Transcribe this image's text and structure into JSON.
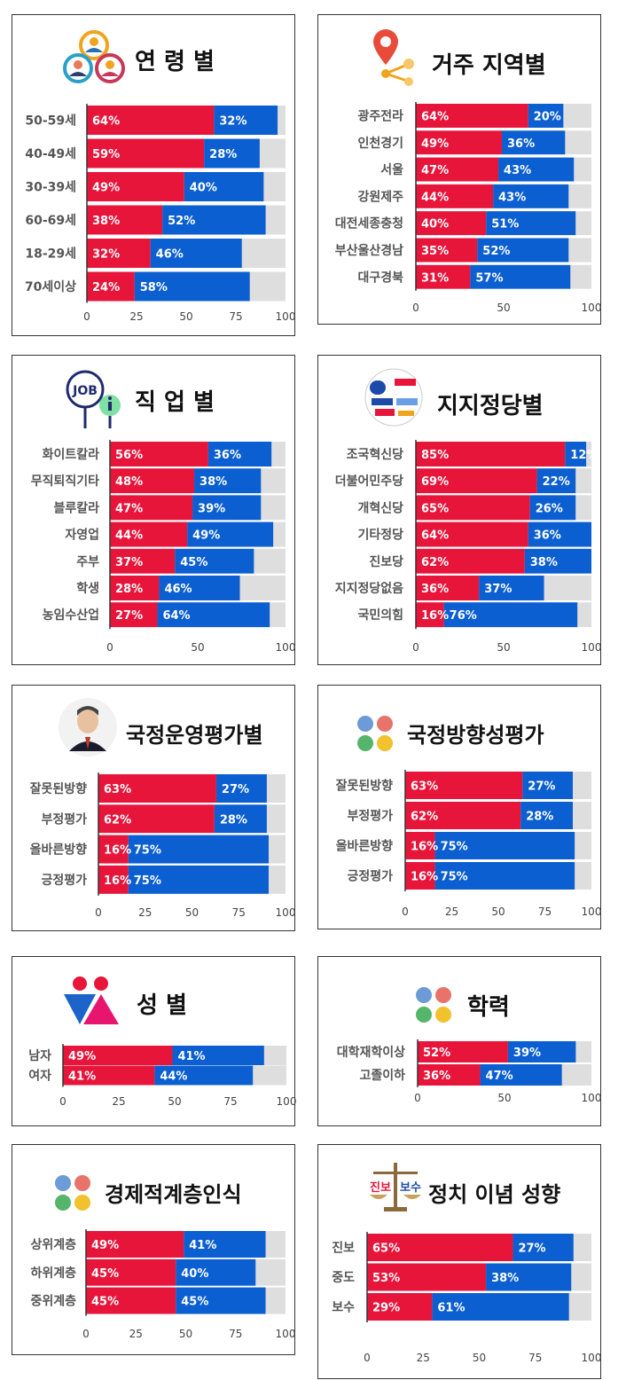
{
  "colors": {
    "red": "#e8153b",
    "blue": "#0b5fd1",
    "gray": "#dedede",
    "axis": "#333333"
  },
  "panels": [
    {
      "title": "연 령 별",
      "icon": "people-group-icon"
    },
    {
      "title": "거주 지역별",
      "icon": "location-pin-icon"
    },
    {
      "title": "직 업 별",
      "icon": "job-icon"
    },
    {
      "title": "지지정당별",
      "icon": "party-logos-icon"
    },
    {
      "title": "국정운영평가별",
      "icon": "president-portrait-icon"
    },
    {
      "title": "국정방향성평가",
      "icon": "four-dots-icon"
    },
    {
      "title": "성 별",
      "icon": "gender-icon"
    },
    {
      "title": "학력",
      "icon": "four-dots-icon"
    },
    {
      "title": "경제적계층인식",
      "icon": "four-dots-icon"
    },
    {
      "title": "정치 이념 성향",
      "icon": "scale-icon",
      "icon_labels": [
        "진보",
        "보수"
      ]
    }
  ],
  "chart_data": [
    {
      "type": "bar",
      "title": "연 령 별",
      "categories": [
        "50-59세",
        "40-49세",
        "30-39세",
        "60-69세",
        "18-29세",
        "70세이상"
      ],
      "series": [
        {
          "values": [
            64,
            59,
            49,
            38,
            32,
            24
          ]
        },
        {
          "values": [
            32,
            28,
            40,
            52,
            46,
            58
          ]
        }
      ],
      "xticks": [
        0,
        25,
        50,
        75,
        100
      ],
      "xlim": [
        0,
        100
      ]
    },
    {
      "type": "bar",
      "title": "거주 지역별",
      "categories": [
        "광주전라",
        "인천경기",
        "서울",
        "강원제주",
        "대전세종충청",
        "부산울산경남",
        "대구경북"
      ],
      "series": [
        {
          "values": [
            64,
            49,
            47,
            44,
            40,
            35,
            31
          ]
        },
        {
          "values": [
            20,
            36,
            43,
            43,
            51,
            52,
            57
          ]
        }
      ],
      "xticks": [
        0,
        50,
        100
      ],
      "xlim": [
        0,
        100
      ]
    },
    {
      "type": "bar",
      "title": "직 업 별",
      "categories": [
        "화이트칼라",
        "무직퇴직기타",
        "블루칼라",
        "자영업",
        "주부",
        "학생",
        "농임수산업"
      ],
      "series": [
        {
          "values": [
            56,
            48,
            47,
            44,
            37,
            28,
            27
          ]
        },
        {
          "values": [
            36,
            38,
            39,
            49,
            45,
            46,
            64
          ]
        }
      ],
      "xticks": [
        0,
        50,
        100
      ],
      "xlim": [
        0,
        100
      ]
    },
    {
      "type": "bar",
      "title": "지지정당별",
      "categories": [
        "조국혁신당",
        "더불어민주당",
        "개혁신당",
        "기타정당",
        "진보당",
        "지지정당없음",
        "국민의힘"
      ],
      "series": [
        {
          "values": [
            85,
            69,
            65,
            64,
            62,
            36,
            16
          ]
        },
        {
          "values": [
            12,
            22,
            26,
            36,
            38,
            37,
            76
          ]
        }
      ],
      "xticks": [
        0,
        50,
        100
      ],
      "xlim": [
        0,
        100
      ]
    },
    {
      "type": "bar",
      "title": "국정운영평가별",
      "categories": [
        "잘못된방향",
        "부정평가",
        "올바른방향",
        "긍정평가"
      ],
      "series": [
        {
          "values": [
            63,
            62,
            16,
            16
          ]
        },
        {
          "values": [
            27,
            28,
            75,
            75
          ]
        }
      ],
      "xticks": [
        0,
        25,
        50,
        75,
        100
      ],
      "xlim": [
        0,
        100
      ]
    },
    {
      "type": "bar",
      "title": "국정방향성평가",
      "categories": [
        "잘못된방향",
        "부정평가",
        "올바른방향",
        "긍정평가"
      ],
      "series": [
        {
          "values": [
            63,
            62,
            16,
            16
          ]
        },
        {
          "values": [
            27,
            28,
            75,
            75
          ]
        }
      ],
      "xticks": [
        0,
        25,
        50,
        75,
        100
      ],
      "xlim": [
        0,
        100
      ]
    },
    {
      "type": "bar",
      "title": "성 별",
      "categories": [
        "남자",
        "여자"
      ],
      "series": [
        {
          "values": [
            49,
            41
          ]
        },
        {
          "values": [
            41,
            44
          ]
        }
      ],
      "xticks": [
        0,
        25,
        50,
        75,
        100
      ],
      "xlim": [
        0,
        100
      ]
    },
    {
      "type": "bar",
      "title": "학력",
      "categories": [
        "대학재학이상",
        "고졸이하"
      ],
      "series": [
        {
          "values": [
            52,
            36
          ]
        },
        {
          "values": [
            39,
            47
          ]
        }
      ],
      "xticks": [
        0,
        50,
        100
      ],
      "xlim": [
        0,
        100
      ]
    },
    {
      "type": "bar",
      "title": "경제적계층인식",
      "categories": [
        "상위계층",
        "하위계층",
        "중위계층"
      ],
      "series": [
        {
          "values": [
            49,
            45,
            45
          ]
        },
        {
          "values": [
            41,
            40,
            45
          ]
        }
      ],
      "xticks": [
        0,
        25,
        50,
        75,
        100
      ],
      "xlim": [
        0,
        100
      ]
    },
    {
      "type": "bar",
      "title": "정치 이념 성향",
      "categories": [
        "진보",
        "중도",
        "보수"
      ],
      "series": [
        {
          "values": [
            65,
            53,
            29
          ]
        },
        {
          "values": [
            27,
            38,
            61
          ]
        }
      ],
      "xticks": [
        0,
        25,
        50,
        75,
        100
      ],
      "xlim": [
        0,
        100
      ]
    }
  ]
}
